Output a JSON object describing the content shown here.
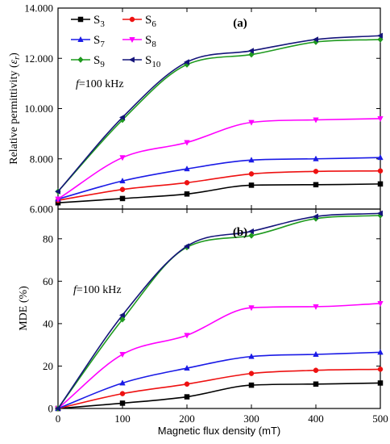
{
  "chart_data": [
    {
      "type": "line",
      "panel_label": "(a)",
      "annotation": "f=100 kHz",
      "annotation_italic": "f",
      "annotation_rest": "=100 kHz",
      "ylabel": "Relative permittivity (εr)",
      "ylabel_main": "Relative permittivity (",
      "ylabel_sym": "ε",
      "ylabel_sub": "r",
      "ylabel_end": ")",
      "xlabel": "",
      "xlim": [
        0,
        500
      ],
      "ylim": [
        6.0,
        14.0
      ],
      "yticks": [
        "6.000",
        "8.000",
        "10.000",
        "12.000",
        "14.000"
      ],
      "ytick_values": [
        6,
        8,
        10,
        12,
        14
      ],
      "legend": "top-left",
      "grid": false,
      "series": [
        {
          "name": "S3",
          "base": "S",
          "sub": "3",
          "color": "#000000",
          "marker": "square",
          "x": [
            0,
            100,
            200,
            300,
            400,
            500
          ],
          "y": [
            6.25,
            6.42,
            6.6,
            6.95,
            6.97,
            7.0
          ]
        },
        {
          "name": "S6",
          "base": "S",
          "sub": "6",
          "color": "#ee1111",
          "marker": "circle",
          "x": [
            0,
            100,
            200,
            300,
            400,
            500
          ],
          "y": [
            6.35,
            6.78,
            7.05,
            7.4,
            7.5,
            7.52
          ]
        },
        {
          "name": "S7",
          "base": "S",
          "sub": "7",
          "color": "#1a1ae6",
          "marker": "triangle-up",
          "x": [
            0,
            100,
            200,
            300,
            400,
            500
          ],
          "y": [
            6.4,
            7.12,
            7.6,
            7.95,
            8.0,
            8.05
          ]
        },
        {
          "name": "S8",
          "base": "S",
          "sub": "8",
          "color": "#ff00ff",
          "marker": "triangle-down",
          "x": [
            0,
            100,
            200,
            300,
            400,
            500
          ],
          "y": [
            6.4,
            8.05,
            8.65,
            9.45,
            9.55,
            9.6
          ]
        },
        {
          "name": "S9",
          "base": "S",
          "sub": "9",
          "color": "#1f9a1f",
          "marker": "diamond",
          "x": [
            0,
            100,
            200,
            300,
            400,
            500
          ],
          "y": [
            6.7,
            9.55,
            11.75,
            12.15,
            12.65,
            12.75
          ]
        },
        {
          "name": "S10",
          "base": "S",
          "sub": "10",
          "color": "#14147a",
          "marker": "left-triangle",
          "x": [
            0,
            100,
            200,
            300,
            400,
            500
          ],
          "y": [
            6.7,
            9.65,
            11.85,
            12.3,
            12.75,
            12.9
          ]
        }
      ]
    },
    {
      "type": "line",
      "panel_label": "(b)",
      "annotation": "f=100 kHz",
      "annotation_italic": "f",
      "annotation_rest": "=100 kHz",
      "ylabel": "MDE (%)",
      "xlabel": "Magnetic flux density (mT)",
      "xlim": [
        0,
        500
      ],
      "xticks": [
        "0",
        "100",
        "200",
        "300",
        "400",
        "500"
      ],
      "xtick_values": [
        0,
        100,
        200,
        300,
        400,
        500
      ],
      "ylim": [
        0,
        94
      ],
      "yticks": [
        "0",
        "20",
        "40",
        "60",
        "80"
      ],
      "ytick_values": [
        0,
        20,
        40,
        60,
        80
      ],
      "grid": false,
      "series": [
        {
          "name": "S3",
          "color": "#000000",
          "marker": "square",
          "x": [
            0,
            100,
            200,
            300,
            400,
            500
          ],
          "y": [
            0,
            2.5,
            5.5,
            11.0,
            11.5,
            12.0
          ]
        },
        {
          "name": "S6",
          "color": "#ee1111",
          "marker": "circle",
          "x": [
            0,
            100,
            200,
            300,
            400,
            500
          ],
          "y": [
            0,
            7.0,
            11.5,
            16.5,
            18.0,
            18.5
          ]
        },
        {
          "name": "S7",
          "color": "#1a1ae6",
          "marker": "triangle-up",
          "x": [
            0,
            100,
            200,
            300,
            400,
            500
          ],
          "y": [
            0,
            12.0,
            19.0,
            24.5,
            25.5,
            26.5
          ]
        },
        {
          "name": "S8",
          "color": "#ff00ff",
          "marker": "triangle-down",
          "x": [
            0,
            100,
            200,
            300,
            400,
            500
          ],
          "y": [
            0,
            25.5,
            34.5,
            47.5,
            48.0,
            49.5
          ]
        },
        {
          "name": "S9",
          "color": "#1f9a1f",
          "marker": "diamond",
          "x": [
            0,
            100,
            200,
            300,
            400,
            500
          ],
          "y": [
            0,
            42.0,
            76.0,
            81.5,
            89.5,
            91.0
          ]
        },
        {
          "name": "S10",
          "color": "#14147a",
          "marker": "left-triangle",
          "x": [
            0,
            100,
            200,
            300,
            400,
            500
          ],
          "y": [
            0,
            44.0,
            76.5,
            83.5,
            90.5,
            92.0
          ]
        }
      ]
    }
  ]
}
